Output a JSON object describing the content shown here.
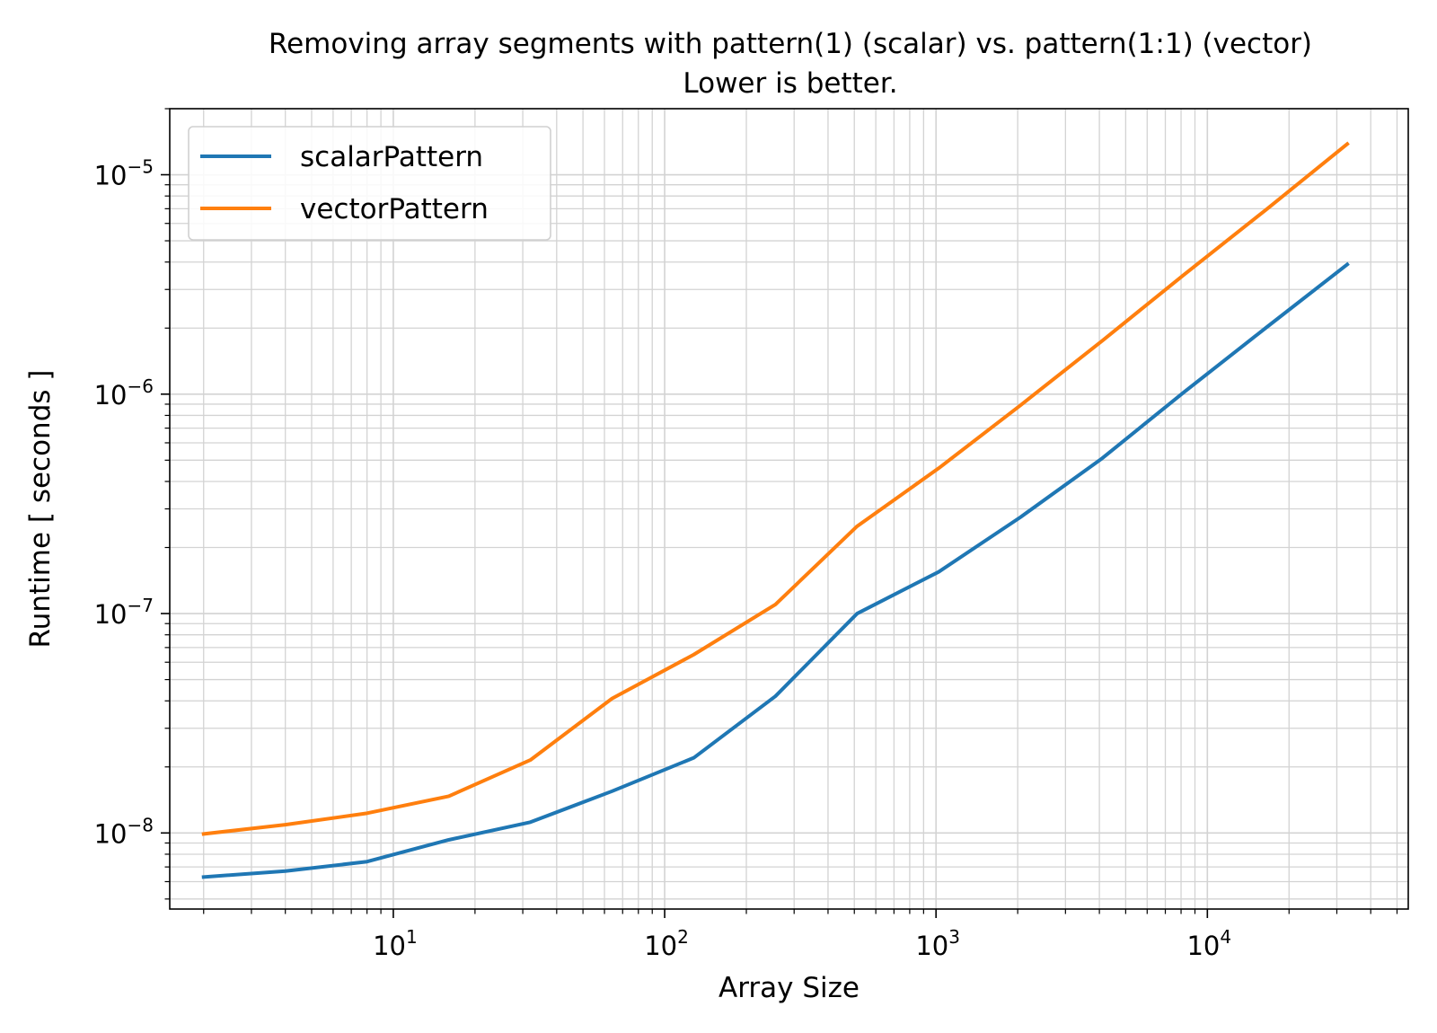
{
  "chart_data": {
    "type": "line",
    "title": "Removing array segments with pattern(1) (scalar) vs. pattern(1:1) (vector)",
    "subtitle": "Lower is better.",
    "xlabel": "Array Size",
    "ylabel": "Runtime [ seconds ]",
    "x_scale": "log",
    "y_scale": "log",
    "xlim": [
      1.5,
      55000
    ],
    "ylim": [
      4.5e-09,
      2e-05
    ],
    "x_tick_labels": [
      {
        "value": 10,
        "base": "10",
        "exp": "1"
      },
      {
        "value": 100,
        "base": "10",
        "exp": "2"
      },
      {
        "value": 1000,
        "base": "10",
        "exp": "3"
      },
      {
        "value": 10000,
        "base": "10",
        "exp": "4"
      }
    ],
    "y_tick_labels": [
      {
        "value": 1e-08,
        "base": "10",
        "exp": "−8"
      },
      {
        "value": 1e-07,
        "base": "10",
        "exp": "−7"
      },
      {
        "value": 1e-06,
        "base": "10",
        "exp": "−6"
      },
      {
        "value": 1e-05,
        "base": "10",
        "exp": "−5"
      }
    ],
    "grid": true,
    "grid_minor": true,
    "legend_position": "top-left",
    "x": [
      2,
      4,
      8,
      16,
      32,
      64,
      128,
      256,
      512,
      1024,
      2048,
      4096,
      8192,
      16384,
      32768
    ],
    "series": [
      {
        "name": "scalarPattern",
        "color": "#1f77b4",
        "values": [
          6.3e-09,
          6.7e-09,
          7.4e-09,
          9.3e-09,
          1.12e-08,
          1.55e-08,
          2.2e-08,
          4.2e-08,
          1e-07,
          1.55e-07,
          2.75e-07,
          5.1e-07,
          1.02e-06,
          2e-06,
          3.9e-06
        ]
      },
      {
        "name": "vectorPattern",
        "color": "#ff7f0e",
        "values": [
          9.9e-09,
          1.09e-08,
          1.23e-08,
          1.47e-08,
          2.15e-08,
          4.1e-08,
          6.5e-08,
          1.1e-07,
          2.5e-07,
          4.6e-07,
          8.9e-07,
          1.75e-06,
          3.5e-06,
          6.9e-06,
          1.38e-05
        ]
      }
    ]
  }
}
